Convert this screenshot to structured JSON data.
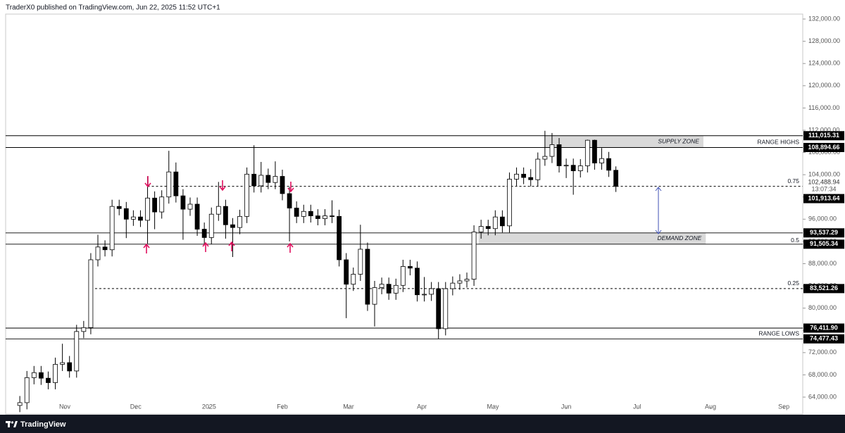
{
  "chart_data": {
    "type": "candlestick",
    "header": "TraderX0 published on TradingView.com, Jun 22, 2025 11:52 UTC+1",
    "brand": "TradingView",
    "grid": false,
    "up_color": "#ffffff",
    "down_color": "#000000",
    "xlim": [
      -6,
      331
    ],
    "ylim": [
      62230,
      132890
    ],
    "xticks": [
      {
        "value": 19,
        "label": "Nov"
      },
      {
        "value": 49,
        "label": "Dec"
      },
      {
        "value": 80,
        "label": "2025"
      },
      {
        "value": 111,
        "label": "Feb"
      },
      {
        "value": 139,
        "label": "Mar"
      },
      {
        "value": 170,
        "label": "Apr"
      },
      {
        "value": 200,
        "label": "May"
      },
      {
        "value": 231,
        "label": "Jun"
      },
      {
        "value": 261,
        "label": "Jul"
      },
      {
        "value": 292,
        "label": "Aug"
      },
      {
        "value": 323,
        "label": "Sep"
      }
    ],
    "yticks": [
      {
        "value": 64000,
        "label": "64,000.00"
      },
      {
        "value": 68000,
        "label": "68,000.00"
      },
      {
        "value": 72000,
        "label": "72,000.00"
      },
      {
        "value": 76000,
        "label": "76,000.00"
      },
      {
        "value": 80000,
        "label": "80,000.00"
      },
      {
        "value": 84000,
        "label": "84,000.00"
      },
      {
        "value": 88000,
        "label": "88,000.00"
      },
      {
        "value": 92000,
        "label": "92,000.00"
      },
      {
        "value": 96000,
        "label": "96,000.00"
      },
      {
        "value": 100000,
        "label": "100,000.00"
      },
      {
        "value": 104000,
        "label": "104,000.00"
      },
      {
        "value": 108000,
        "label": "108,000.00"
      },
      {
        "value": 112000,
        "label": "112,000.00"
      },
      {
        "value": 116000,
        "label": "116,000.00"
      },
      {
        "value": 120000,
        "label": "120,000.00"
      },
      {
        "value": 124000,
        "label": "124,000.00"
      },
      {
        "value": 128000,
        "label": "128,000.00"
      },
      {
        "value": 132000,
        "label": "132,000.00"
      }
    ],
    "x": [
      0,
      3,
      6,
      9,
      12,
      15,
      18,
      21,
      24,
      27,
      30,
      33,
      36,
      39,
      42,
      45,
      48,
      51,
      54,
      57,
      60,
      63,
      66,
      69,
      72,
      75,
      78,
      81,
      84,
      87,
      90,
      93,
      96,
      99,
      102,
      105,
      108,
      111,
      114,
      117,
      120,
      123,
      126,
      129,
      132,
      135,
      138,
      141,
      144,
      147,
      150,
      153,
      156,
      159,
      162,
      165,
      168,
      171,
      174,
      177,
      180,
      183,
      186,
      189,
      192,
      195,
      198,
      201,
      204,
      207,
      210,
      213,
      216,
      219,
      222,
      225,
      228,
      231,
      234,
      237,
      240,
      243,
      246,
      249,
      252
    ],
    "open": [
      62500,
      63000,
      67500,
      68400,
      67400,
      66600,
      69900,
      70200,
      68700,
      75800,
      76500,
      88700,
      91000,
      90500,
      98300,
      97900,
      96000,
      96400,
      95800,
      99800,
      97300,
      100000,
      104500,
      100200,
      97800,
      98700,
      94200,
      92700,
      96900,
      98300,
      95000,
      94500,
      96500,
      104100,
      102000,
      103900,
      102600,
      103700,
      100600,
      98000,
      96500,
      97400,
      96600,
      96100,
      96600,
      96500,
      88700,
      84300,
      86100,
      90600,
      80700,
      83700,
      84300,
      82700,
      84100,
      87500,
      87200,
      82400,
      82500,
      83500,
      76300,
      83500,
      84500,
      84900,
      85200,
      93700,
      94700,
      94300,
      96400,
      94800,
      103200,
      104100,
      103500,
      103100,
      106800,
      107300,
      109400,
      105600,
      105700,
      104700,
      105600,
      110200,
      106100,
      106900,
      104800
    ],
    "high": [
      64200,
      68700,
      69600,
      69600,
      68600,
      71100,
      73600,
      71400,
      77000,
      77700,
      89900,
      93200,
      92200,
      99500,
      99500,
      99100,
      97600,
      97600,
      103700,
      101000,
      101200,
      108300,
      106200,
      101400,
      99900,
      99900,
      95400,
      98100,
      102700,
      99500,
      96200,
      97700,
      105300,
      109300,
      106300,
      105100,
      106400,
      104900,
      101800,
      99200,
      98600,
      98600,
      97800,
      97800,
      99400,
      97700,
      89900,
      87300,
      95000,
      91800,
      84900,
      85500,
      85500,
      85300,
      88700,
      88700,
      88400,
      85600,
      84700,
      84700,
      84700,
      85700,
      86100,
      86400,
      94900,
      95900,
      95900,
      97600,
      97600,
      104400,
      105300,
      105300,
      105000,
      108000,
      111900,
      111500,
      110600,
      106900,
      106900,
      106800,
      110300,
      110300,
      108800,
      108100,
      105500
    ],
    "low": [
      61300,
      61800,
      66300,
      66200,
      65400,
      65400,
      68700,
      67500,
      67500,
      74600,
      75300,
      87500,
      89300,
      89300,
      96700,
      92600,
      94800,
      94600,
      91600,
      94200,
      96100,
      98800,
      99000,
      92300,
      96600,
      93000,
      91300,
      91500,
      95700,
      92500,
      89200,
      93300,
      95300,
      100800,
      100800,
      101400,
      101400,
      99400,
      92000,
      95300,
      95300,
      95400,
      94900,
      94900,
      95300,
      87500,
      78200,
      83100,
      84900,
      79500,
      76700,
      82500,
      81500,
      81500,
      82900,
      85900,
      81200,
      81200,
      81300,
      74500,
      75100,
      82300,
      83300,
      83700,
      84000,
      92500,
      93100,
      93100,
      93600,
      93600,
      102000,
      102300,
      101900,
      101900,
      105600,
      106100,
      104400,
      103400,
      100400,
      103500,
      104400,
      104900,
      104900,
      103600,
      100900
    ],
    "close": [
      63000,
      67500,
      68400,
      67400,
      66600,
      69900,
      70200,
      68700,
      75800,
      76500,
      88700,
      91000,
      90500,
      98300,
      97900,
      96000,
      96400,
      95800,
      99800,
      97300,
      100000,
      104500,
      100200,
      97800,
      98700,
      94200,
      92700,
      96900,
      98300,
      95000,
      94500,
      96500,
      104100,
      102000,
      103900,
      102600,
      103700,
      100600,
      98000,
      96500,
      97400,
      96600,
      96100,
      96600,
      96500,
      88700,
      84300,
      86100,
      90600,
      80700,
      83700,
      84300,
      82700,
      84100,
      87500,
      87200,
      82400,
      82500,
      83500,
      76300,
      83500,
      84500,
      84900,
      85200,
      93700,
      94700,
      94300,
      96400,
      94800,
      103200,
      104100,
      103500,
      103100,
      106800,
      107300,
      109400,
      105600,
      105700,
      104700,
      105600,
      110200,
      106100,
      106900,
      104800,
      101900
    ],
    "zones": [
      {
        "label": "SUPPLY ZONE",
        "from": 108894.66,
        "to": 111015.31,
        "start": 222,
        "end": 289
      },
      {
        "label": "DEMAND ZONE",
        "from": 91505.34,
        "to": 93537.29,
        "start": 194,
        "end": 290
      }
    ],
    "levels": [
      {
        "price": {
          "value": 111015.31,
          "label": "111,015.31"
        },
        "style": "solid"
      },
      {
        "price": {
          "value": 108894.66,
          "label": "108,894.66"
        },
        "style": "solid",
        "note": "RANGE HIGHS"
      },
      {
        "price": {
          "value": 101913.64,
          "label": "101,913.64"
        },
        "style": "dashed",
        "start": 54,
        "fib": "0.75"
      },
      {
        "price": {
          "value": 93537.29,
          "label": "93,537.29"
        },
        "style": "solid"
      },
      {
        "price": {
          "value": 91505.34,
          "label": "91,505.34"
        },
        "style": "solid",
        "fib": "0.5"
      },
      {
        "price": {
          "value": 83521.26,
          "label": "83,521.26"
        },
        "style": "dashed",
        "start": 30,
        "fib": "0.25"
      },
      {
        "price": {
          "value": 76411.9,
          "label": "76,411.90"
        },
        "style": "solid"
      },
      {
        "price": {
          "value": 74477.43,
          "label": "74,477.43"
        },
        "style": "solid",
        "note": "RANGE LOWS"
      }
    ],
    "last_price": {
      "value": 102488.94,
      "label": "102,488.94"
    },
    "countdown": "13:07:34"
  }
}
